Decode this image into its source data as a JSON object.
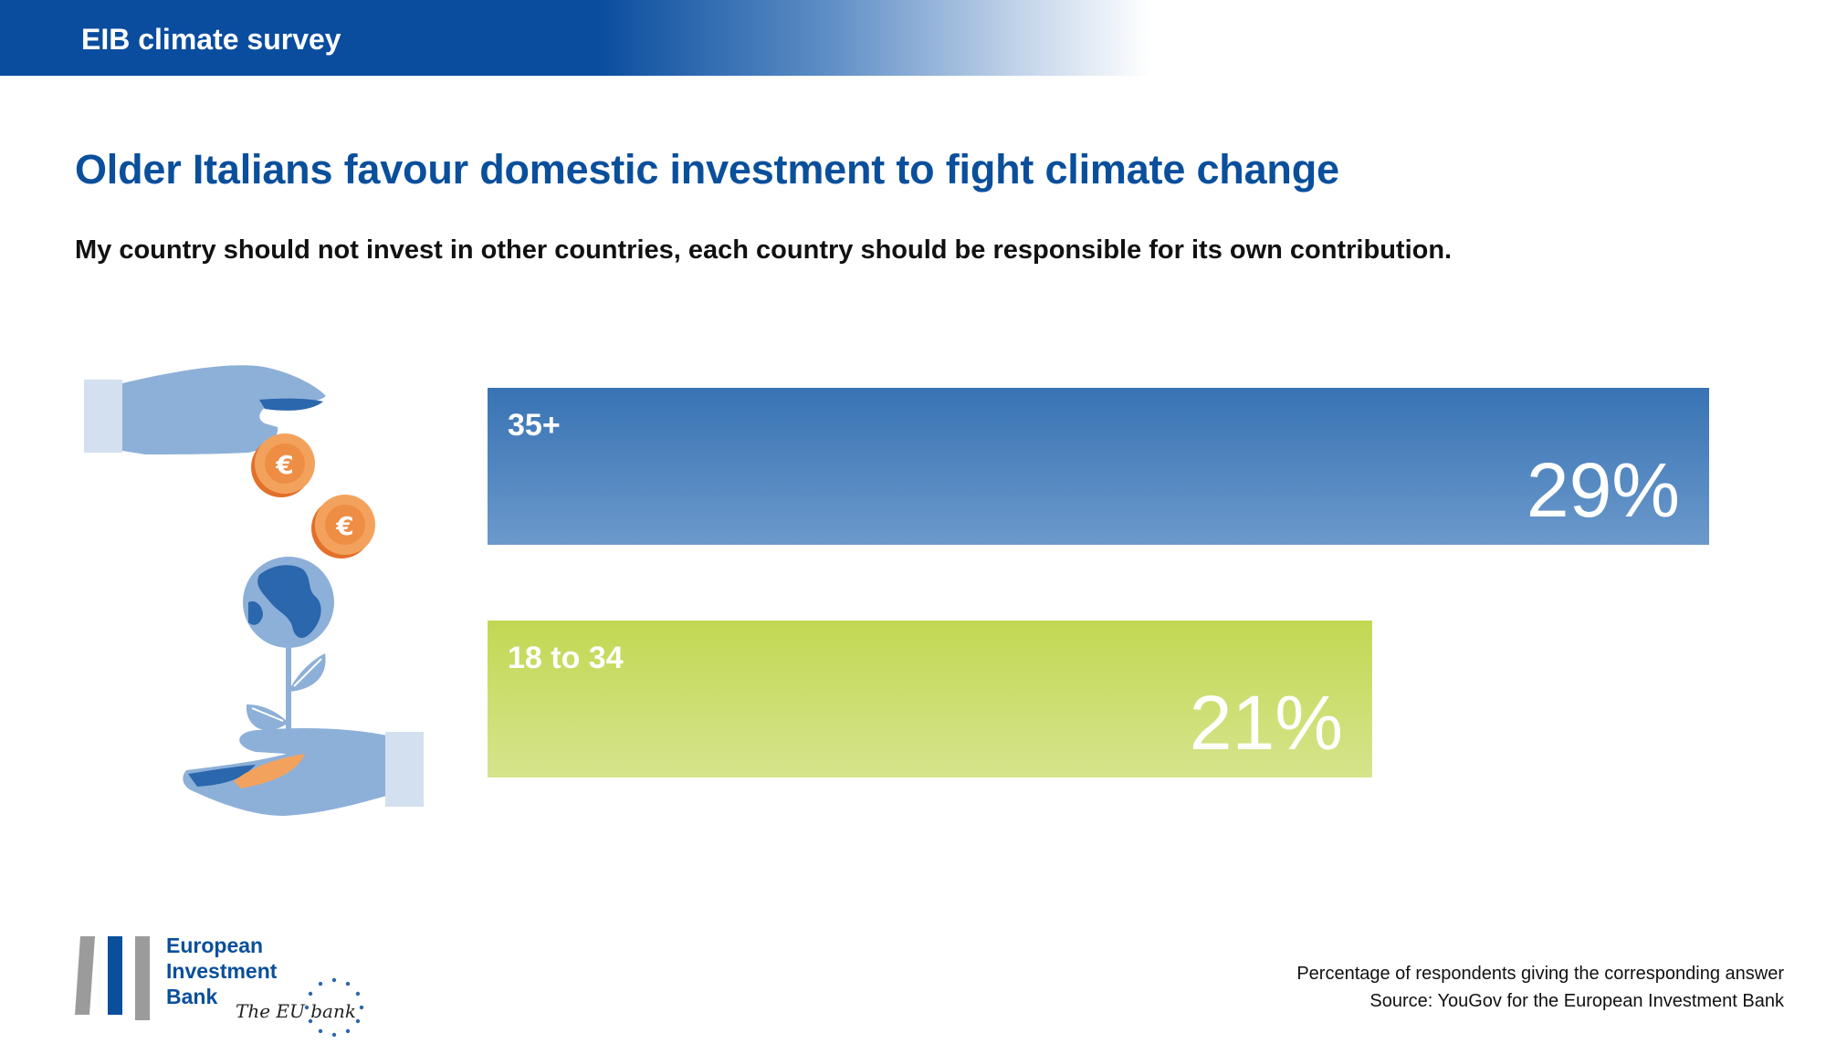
{
  "header": {
    "banner_title": "EIB climate survey"
  },
  "title": "Older Italians favour domestic investment to fight climate change",
  "subtitle": "My country should not invest in other countries, each country should be responsible for its own contribution.",
  "illustration": {
    "coin_symbol": "€"
  },
  "chart_data": {
    "type": "bar",
    "orientation": "horizontal",
    "categories": [
      "35+",
      "18 to 34"
    ],
    "values": [
      29,
      21
    ],
    "value_labels": [
      "29%",
      "21%"
    ],
    "unit": "%",
    "xlim": [
      0,
      29
    ],
    "title": "",
    "xlabel": "",
    "ylabel": "",
    "colors": [
      "#3e79b9",
      "#c2d95b"
    ]
  },
  "logo": {
    "line1": "European",
    "line2": "Investment",
    "line3": "Bank",
    "tagline": "The EU bank"
  },
  "footnote": {
    "line1": "Percentage of respondents giving the corresponding answer",
    "line2": "Source: YouGov for the European Investment Bank"
  },
  "colors": {
    "brand_blue": "#0a4f9c",
    "bar_top": "#3e79b9",
    "bar_bottom": "#c2d95b"
  }
}
